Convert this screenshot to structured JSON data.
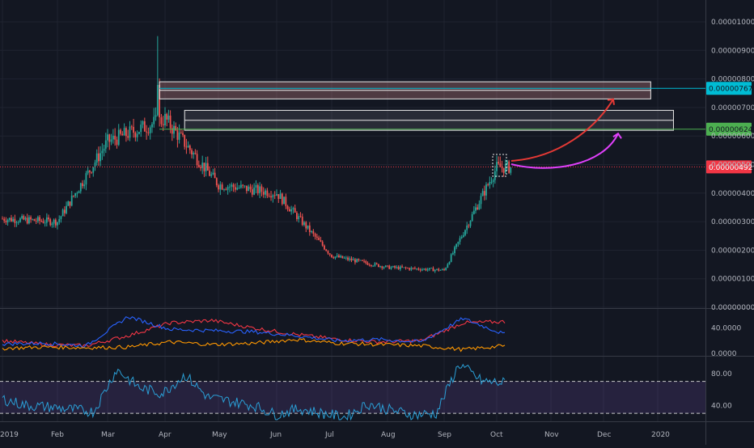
{
  "chart_data": [
    {
      "type": "candlestick",
      "pane": "price",
      "x_tick_labels": [
        "2019",
        "Feb",
        "Mar",
        "Apr",
        "May",
        "Jun",
        "Jul",
        "Aug",
        "Sep",
        "Oct",
        "Nov",
        "Dec",
        "2020"
      ],
      "y_tick_labels": [
        "0.00000000",
        "0.00000100",
        "0.00000200",
        "0.00000300",
        "0.00000400",
        "0.00000500",
        "0.00000600",
        "0.00000700",
        "0.00000800",
        "0.00000900",
        "0.00001000"
      ],
      "ylim": [
        0,
        1.04e-05
      ],
      "close_approx": [
        {
          "date": "2019-01",
          "value": 3.1e-06
        },
        {
          "date": "2019-02",
          "value": 3e-06
        },
        {
          "date": "2019-03",
          "value": 5.8e-06
        },
        {
          "date": "2019-04",
          "value": 6.6e-06
        },
        {
          "date": "2019-05",
          "value": 4.3e-06
        },
        {
          "date": "2019-06",
          "value": 4e-06
        },
        {
          "date": "2019-07",
          "value": 1.8e-06
        },
        {
          "date": "2019-08",
          "value": 1.4e-06
        },
        {
          "date": "2019-09",
          "value": 1.3e-06
        },
        {
          "date": "2019-10",
          "value": 4.9e-06
        }
      ],
      "peak": {
        "date": "2019-03-28",
        "value": 9.5e-06
      },
      "resistance_zones": [
        {
          "low": 7.3e-06,
          "high": 7.9e-06,
          "from": "2019-03-29",
          "to": "2019-12-28"
        },
        {
          "low": 6.2e-06,
          "high": 6.9e-06,
          "from": "2019-04-12",
          "to": "2020-01-10"
        }
      ],
      "price_lines": [
        {
          "label": "0.00000767",
          "value": 7.67e-06,
          "color": "#00bcd4"
        },
        {
          "label": "0.00000624",
          "value": 6.24e-06,
          "color": "#4caf50"
        },
        {
          "label": "0.00000492",
          "value": 4.92e-06,
          "color": "#f23645"
        }
      ],
      "arrows": [
        {
          "color": "#e53935",
          "to": "0.00000767 zone"
        },
        {
          "color": "#e040fb",
          "to": "0.00000624 zone"
        }
      ]
    },
    {
      "type": "line",
      "pane": "indicator",
      "y_tick_labels": [
        "0.0000",
        "40.0000"
      ],
      "ylim": [
        0,
        65
      ],
      "series": [
        {
          "color": "#f23645",
          "values": [
            20,
            14,
            12,
            28,
            48,
            52,
            40,
            30,
            22,
            18,
            20,
            48,
            50
          ]
        },
        {
          "color": "#2962ff",
          "values": [
            15,
            16,
            12,
            58,
            38,
            36,
            34,
            28,
            20,
            22,
            18,
            55,
            30
          ]
        },
        {
          "color": "#ff9800",
          "values": [
            8,
            10,
            9,
            10,
            18,
            14,
            16,
            22,
            16,
            14,
            12,
            6,
            12
          ]
        }
      ]
    },
    {
      "type": "line",
      "pane": "rsi",
      "y_tick_labels": [
        "80.00",
        "40.00"
      ],
      "bands": [
        70,
        30
      ],
      "ylim": [
        20,
        100
      ],
      "values": [
        48,
        40,
        38,
        35,
        32,
        85,
        62,
        55,
        78,
        50,
        45,
        40,
        28,
        36,
        30,
        25,
        42,
        34,
        28,
        30,
        92,
        70,
        68
      ]
    }
  ]
}
